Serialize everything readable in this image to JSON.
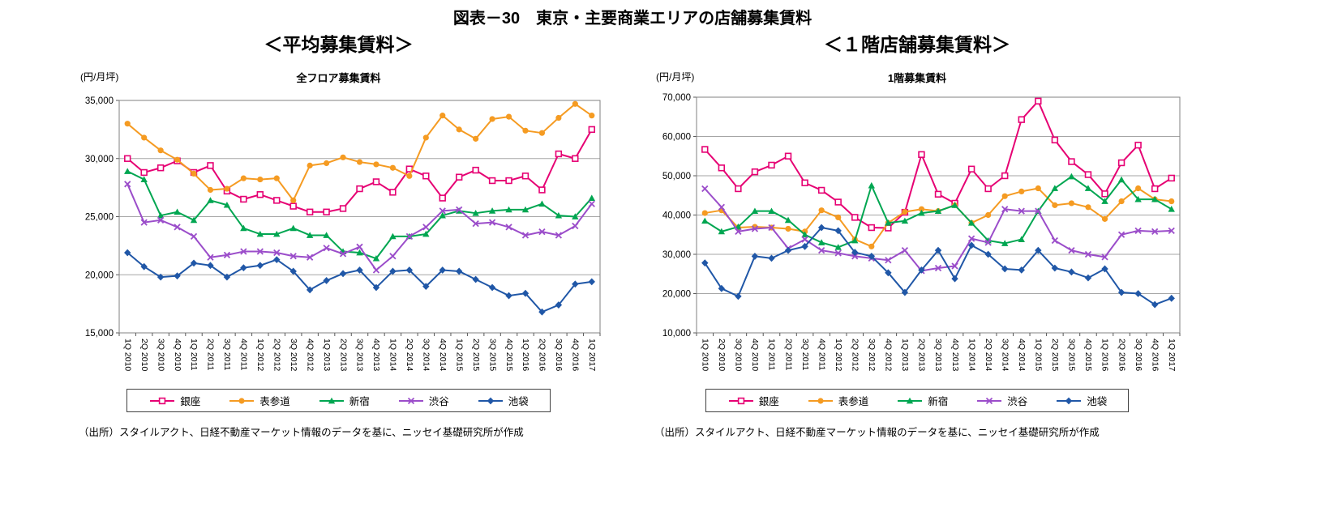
{
  "page_title": "図表－30　東京・主要商業エリアの店舗募集賃料",
  "chart_data": [
    {
      "type": "line",
      "panel_heading": "＜平均募集賃料＞",
      "title": "全フロア募集賃料",
      "unit_label": "(円/月坪)",
      "ylim": [
        15000,
        35000
      ],
      "ytick_step": 5000,
      "grid": true,
      "legend_position": "bottom",
      "source": "（出所）スタイルアクト、日経不動産マーケット情報のデータを基に、ニッセイ基礎研究所が作成",
      "categories": [
        "1Q 2010",
        "2Q 2010",
        "3Q 2010",
        "4Q 2010",
        "1Q 2011",
        "2Q 2011",
        "3Q 2011",
        "4Q 2011",
        "1Q 2012",
        "2Q 2012",
        "3Q 2012",
        "4Q 2012",
        "1Q 2013",
        "2Q 2013",
        "3Q 2013",
        "4Q 2013",
        "1Q 2014",
        "2Q 2014",
        "3Q 2014",
        "4Q 2014",
        "1Q 2015",
        "2Q 2015",
        "3Q 2015",
        "4Q 2015",
        "1Q 2016",
        "2Q 2016",
        "3Q 2016",
        "4Q 2016",
        "1Q 2017"
      ],
      "series": [
        {
          "name": "銀座",
          "color": "#e60073",
          "marker": "square-open",
          "values": [
            30000,
            28800,
            29200,
            29800,
            28800,
            29400,
            27200,
            26500,
            26900,
            26400,
            25900,
            25400,
            25400,
            25700,
            27400,
            28000,
            27100,
            29100,
            28500,
            26600,
            28400,
            29000,
            28100,
            28100,
            28500,
            27300,
            30400,
            30000,
            32500
          ]
        },
        {
          "name": "表参道",
          "color": "#f59b22",
          "marker": "circle",
          "values": [
            33000,
            31800,
            30700,
            29900,
            28700,
            27300,
            27400,
            28300,
            28200,
            28300,
            26400,
            29400,
            29600,
            30100,
            29700,
            29500,
            29200,
            28500,
            31800,
            33700,
            32500,
            31700,
            33400,
            33600,
            32400,
            32200,
            33500,
            34700,
            33700
          ]
        },
        {
          "name": "新宿",
          "color": "#00a651",
          "marker": "triangle",
          "values": [
            28900,
            28200,
            25100,
            25400,
            24700,
            26400,
            26000,
            24000,
            23500,
            23500,
            24000,
            23400,
            23400,
            22000,
            21900,
            21400,
            23300,
            23300,
            23500,
            25100,
            25500,
            25300,
            25500,
            25600,
            25600,
            26100,
            25100,
            25000,
            26600
          ]
        },
        {
          "name": "渋谷",
          "color": "#9b4dca",
          "marker": "x",
          "values": [
            27800,
            24500,
            24700,
            24100,
            23300,
            21500,
            21700,
            22000,
            22000,
            21900,
            21600,
            21500,
            22300,
            21800,
            22400,
            20400,
            21600,
            23300,
            24100,
            25500,
            25600,
            24400,
            24500,
            24100,
            23400,
            23700,
            23400,
            24200,
            26100
          ]
        },
        {
          "name": "池袋",
          "color": "#2057a7",
          "marker": "diamond",
          "values": [
            21900,
            20700,
            19800,
            19900,
            21000,
            20800,
            19800,
            20600,
            20800,
            21300,
            20300,
            18700,
            19500,
            20100,
            20400,
            18900,
            20300,
            20400,
            19000,
            20400,
            20300,
            19600,
            18900,
            18200,
            18400,
            16800,
            17400,
            19200,
            19400
          ]
        }
      ]
    },
    {
      "type": "line",
      "panel_heading": "＜１階店舗募集賃料＞",
      "title": "1階募集賃料",
      "unit_label": "(円/月坪)",
      "ylim": [
        10000,
        70000
      ],
      "ytick_step": 10000,
      "grid": true,
      "legend_position": "bottom",
      "source": "（出所）スタイルアクト、日経不動産マーケット情報のデータを基に、ニッセイ基礎研究所が作成",
      "categories": [
        "1Q 2010",
        "2Q 2010",
        "3Q 2010",
        "4Q 2010",
        "1Q 2011",
        "2Q 2011",
        "3Q 2011",
        "4Q 2011",
        "1Q 2012",
        "2Q 2012",
        "3Q 2012",
        "4Q 2012",
        "1Q 2013",
        "2Q 2013",
        "3Q 2013",
        "4Q 2013",
        "1Q 2014",
        "2Q 2014",
        "3Q 2014",
        "4Q 2014",
        "1Q 2015",
        "2Q 2015",
        "3Q 2015",
        "4Q 2015",
        "1Q 2016",
        "2Q 2016",
        "3Q 2016",
        "4Q 2016",
        "1Q 2017"
      ],
      "series": [
        {
          "name": "銀座",
          "color": "#e60073",
          "marker": "square-open",
          "values": [
            56700,
            52000,
            46700,
            51000,
            52700,
            55000,
            48200,
            46300,
            43300,
            39400,
            36800,
            36700,
            40700,
            55400,
            45300,
            43000,
            51700,
            46700,
            50000,
            64300,
            69000,
            59100,
            53600,
            50300,
            45400,
            53300,
            57800,
            46700,
            49400
          ]
        },
        {
          "name": "表参道",
          "color": "#f59b22",
          "marker": "circle",
          "values": [
            40500,
            41200,
            36800,
            37000,
            36800,
            36500,
            35800,
            41200,
            39400,
            33800,
            32000,
            38000,
            40800,
            41500,
            41000,
            42500,
            38000,
            40000,
            44800,
            46000,
            46800,
            42500,
            43000,
            42000,
            39000,
            43500,
            46800,
            44000,
            43500
          ]
        },
        {
          "name": "新宿",
          "color": "#00a651",
          "marker": "triangle",
          "values": [
            38500,
            35800,
            37000,
            41000,
            41000,
            38700,
            35000,
            33000,
            31800,
            33500,
            47500,
            38000,
            38500,
            40500,
            41000,
            42500,
            38000,
            33500,
            32800,
            33800,
            41000,
            46800,
            49800,
            46800,
            43500,
            49000,
            44000,
            44000,
            41500
          ]
        },
        {
          "name": "渋谷",
          "color": "#9b4dca",
          "marker": "x",
          "values": [
            46700,
            42000,
            35800,
            36500,
            36800,
            31500,
            33800,
            31000,
            30300,
            29500,
            29000,
            28500,
            31000,
            25800,
            26500,
            27000,
            34000,
            33000,
            41500,
            41000,
            41000,
            33500,
            31000,
            30000,
            29300,
            35000,
            36000,
            35800,
            36000
          ]
        },
        {
          "name": "池袋",
          "color": "#2057a7",
          "marker": "diamond",
          "values": [
            27800,
            21300,
            19300,
            29500,
            29000,
            31000,
            32000,
            36800,
            36000,
            30500,
            29500,
            25300,
            20300,
            26000,
            31000,
            23800,
            32300,
            30000,
            26300,
            26000,
            31000,
            26500,
            25500,
            24000,
            26300,
            20300,
            20000,
            17200,
            18800
          ]
        }
      ]
    }
  ]
}
